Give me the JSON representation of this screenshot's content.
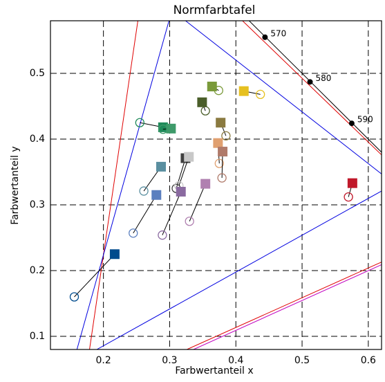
{
  "chart_data": {
    "type": "scatter",
    "title": "Normfarbtafel",
    "x_label": "Farbwertanteil x",
    "y_label": "Farbwertanteil y",
    "xlim": [
      0.12,
      0.62
    ],
    "ylim": [
      0.08,
      0.58
    ],
    "xticks": [
      0.2,
      0.3,
      0.4,
      0.5,
      0.6
    ],
    "yticks": [
      0.1,
      0.2,
      0.3,
      0.4,
      0.5
    ],
    "grid": true,
    "colors": [
      "#004b8d",
      "#5a8fa0",
      "#5b7fbf",
      "#1f8a5a",
      "#3e9a6a",
      "#7a9a3a",
      "#4a5e2a",
      "#e6c020",
      "#8a7a40",
      "#e0a070",
      "#b07a6a",
      "#404040",
      "#c8c8c8",
      "#8a6aa0",
      "#b080b0",
      "#c0182a"
    ],
    "squares": {
      "x": [
        0.217,
        0.287,
        0.28,
        0.29,
        0.302,
        0.364,
        0.349,
        0.412,
        0.377,
        0.373,
        0.38,
        0.324,
        0.329,
        0.317,
        0.354,
        0.576
      ],
      "y": [
        0.225,
        0.358,
        0.315,
        0.418,
        0.416,
        0.48,
        0.456,
        0.473,
        0.425,
        0.394,
        0.381,
        0.371,
        0.373,
        0.32,
        0.332,
        0.333
      ]
    },
    "circles": {
      "x": [
        0.156,
        0.261,
        0.245,
        0.255,
        0.29,
        0.374,
        0.354,
        0.437,
        0.385,
        0.375,
        0.379,
        0.31,
        0.314,
        0.289,
        0.33,
        0.57
      ],
      "y": [
        0.16,
        0.321,
        0.257,
        0.425,
        0.415,
        0.474,
        0.443,
        0.468,
        0.405,
        0.363,
        0.341,
        0.325,
        0.329,
        0.254,
        0.275,
        0.312
      ]
    },
    "locus_points": {
      "x": [
        0.444,
        0.512,
        0.575
      ],
      "y": [
        0.555,
        0.487,
        0.424
      ],
      "labels": [
        "570",
        "580",
        "590"
      ]
    },
    "lines": [
      {
        "color": "#000000",
        "x": [
          0.42,
          0.62
        ],
        "y": [
          0.58,
          0.38
        ]
      },
      {
        "color": "#e00000",
        "x": [
          0.41,
          0.62
        ],
        "y": [
          0.58,
          0.376
        ]
      },
      {
        "color": "#e00000",
        "x": [
          0.252,
          0.179
        ],
        "y": [
          0.58,
          0.08
        ]
      },
      {
        "color": "#0000e0",
        "x": [
          0.299,
          0.16
        ],
        "y": [
          0.58,
          0.08
        ]
      },
      {
        "color": "#0000e0",
        "x": [
          0.324,
          0.62
        ],
        "y": [
          0.58,
          0.347
        ]
      },
      {
        "color": "#0000e0",
        "x": [
          0.19,
          0.62
        ],
        "y": [
          0.08,
          0.321
        ]
      },
      {
        "color": "#e00000",
        "x": [
          0.326,
          0.62
        ],
        "y": [
          0.08,
          0.213
        ]
      },
      {
        "color": "#c000c0",
        "x": [
          0.336,
          0.62
        ],
        "y": [
          0.08,
          0.209
        ]
      }
    ]
  }
}
